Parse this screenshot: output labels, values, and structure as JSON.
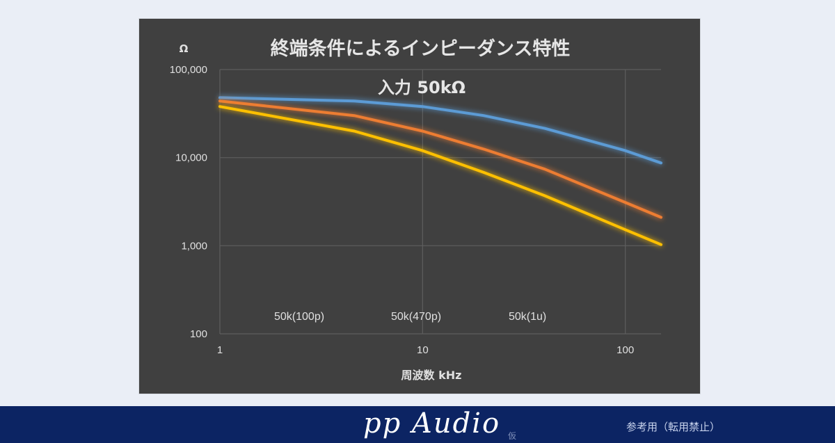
{
  "chart_data": {
    "type": "line",
    "title": "終端条件によるインピーダンス特性",
    "subtitle": "入力 50kΩ",
    "xlabel": "周波数 kHz",
    "ylabel": "Ω",
    "xscale": "log",
    "yscale": "log",
    "xlim": [
      1,
      150
    ],
    "ylim": [
      100,
      100000
    ],
    "xticks": [
      "1",
      "10",
      "100"
    ],
    "yticks": [
      "100,000",
      "10,000",
      "1,000",
      "100"
    ],
    "grid": true,
    "legend_position": "bottom",
    "series": [
      {
        "name": "50k(100p)",
        "color": "#5b9bd5",
        "x": [
          1,
          4.6,
          10,
          20,
          40,
          100,
          150
        ],
        "y": [
          48000,
          44000,
          38000,
          30000,
          21500,
          12000,
          8700
        ]
      },
      {
        "name": "50k(470p)",
        "color": "#ed7d31",
        "x": [
          1,
          4.6,
          10,
          20,
          40,
          100,
          150
        ],
        "y": [
          44000,
          30000,
          20000,
          12500,
          7400,
          3100,
          2100
        ]
      },
      {
        "name": "50k(1u)",
        "color": "#ffc000",
        "x": [
          1,
          4.6,
          10,
          20,
          40,
          100,
          150
        ],
        "y": [
          38000,
          20000,
          12000,
          6800,
          3700,
          1520,
          1030
        ]
      }
    ]
  },
  "footer": {
    "brand": "pp Audio",
    "brand_sub": "仮",
    "notice": "参考用（転用禁止）"
  }
}
